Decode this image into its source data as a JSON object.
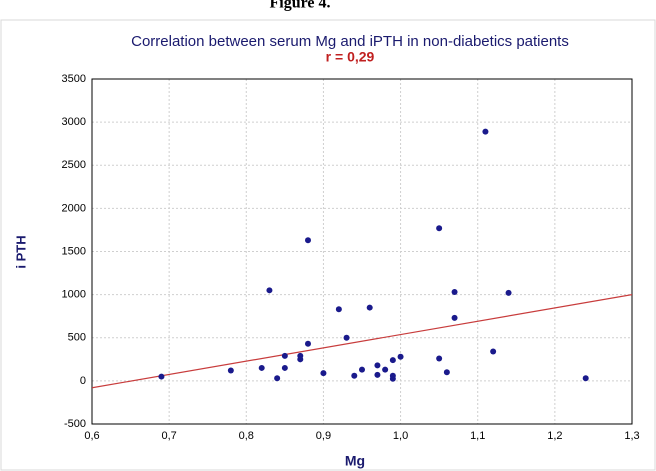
{
  "heading": "Figure 4.",
  "chart_data": {
    "type": "scatter",
    "title": "Correlation between serum Mg and iPTH in non-diabetics patients",
    "subtitle": "r = 0,29",
    "x_label": "Mg",
    "y_label": "i PTH",
    "color": "#1a1a8c",
    "x": [
      0.69,
      0.78,
      0.82,
      0.83,
      0.84,
      0.85,
      0.85,
      0.87,
      0.87,
      0.88,
      0.88,
      0.9,
      0.92,
      0.93,
      0.94,
      0.95,
      0.96,
      0.97,
      0.97,
      0.98,
      0.99,
      0.99,
      0.99,
      1.0,
      1.05,
      1.05,
      1.06,
      1.07,
      1.07,
      1.11,
      1.12,
      1.14,
      1.24
    ],
    "values": [
      50,
      120,
      150,
      1050,
      30,
      290,
      150,
      290,
      250,
      430,
      1630,
      90,
      830,
      500,
      60,
      130,
      850,
      70,
      180,
      130,
      240,
      60,
      25,
      280,
      1770,
      260,
      100,
      1030,
      730,
      2890,
      340,
      1020,
      30
    ],
    "trendline": {
      "x": [
        0.6,
        1.3
      ],
      "y": [
        -80,
        1000
      ],
      "color": "#c83c3c"
    },
    "xlim": [
      0.6,
      1.3
    ],
    "xticks": [
      {
        "value": 0.6,
        "label": "0,6"
      },
      {
        "value": 0.7,
        "label": "0,7"
      },
      {
        "value": 0.8,
        "label": "0,8"
      },
      {
        "value": 0.9,
        "label": "0,9"
      },
      {
        "value": 1.0,
        "label": "1,0"
      },
      {
        "value": 1.1,
        "label": "1,1"
      },
      {
        "value": 1.2,
        "label": "1,2"
      },
      {
        "value": 1.3,
        "label": "1,3"
      }
    ],
    "ylim": [
      -500,
      3500
    ],
    "yticks": [
      -500,
      0,
      500,
      1000,
      1500,
      2000,
      2500,
      3000,
      3500
    ],
    "grid": true
  }
}
